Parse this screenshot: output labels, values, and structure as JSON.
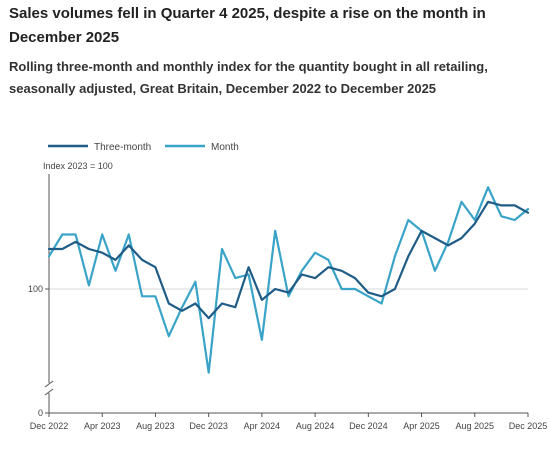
{
  "header": {
    "title": "Sales volumes fell in Quarter 4 2025, despite a rise on the month in December 2025",
    "subtitle": "Rolling three-month and monthly index for the quantity bought in all retailing, seasonally adjusted, Great Britain, December 2022 to December 2025"
  },
  "colors": {
    "three_month": "#1f5c86",
    "month": "#3aa3c8",
    "gridline": "#d9d9d9",
    "axis": "#555555"
  },
  "chart_data": {
    "type": "line",
    "title": "Sales volumes fell in Quarter 4 2025, despite a rise on the month in December 2025",
    "subtitle": "Rolling three-month and monthly index for the quantity bought in all retailing, seasonally adjusted, Great Britain, December 2022 to December 2025",
    "unit_note": "Index 2023 = 100",
    "x": [
      "Dec 2022",
      "Jan 2023",
      "Feb 2023",
      "Mar 2023",
      "Apr 2023",
      "May 2023",
      "Jun 2023",
      "Jul 2023",
      "Aug 2023",
      "Sep 2023",
      "Oct 2023",
      "Nov 2023",
      "Dec 2023",
      "Jan 2024",
      "Feb 2024",
      "Mar 2024",
      "Apr 2024",
      "May 2024",
      "Jun 2024",
      "Jul 2024",
      "Aug 2024",
      "Sep 2024",
      "Oct 2024",
      "Nov 2024",
      "Dec 2024",
      "Jan 2025",
      "Feb 2025",
      "Mar 2025",
      "Apr 2025",
      "May 2025",
      "Jun 2025",
      "Jul 2025",
      "Aug 2025",
      "Sep 2025",
      "Oct 2025",
      "Nov 2025",
      "Dec 2025"
    ],
    "x_tick_labels": [
      "Dec 2022",
      "Apr 2023",
      "Aug 2023",
      "Dec 2023",
      "Apr 2024",
      "Aug 2024",
      "Dec 2024",
      "Apr 2025",
      "Aug 2025",
      "Dec 2025"
    ],
    "x_tick_indices": [
      0,
      4,
      8,
      12,
      16,
      20,
      24,
      28,
      32,
      36
    ],
    "y_tick_labels": [
      "0",
      "100"
    ],
    "y_ticks": [
      0,
      100
    ],
    "y_axis_break": true,
    "ylim": [
      97.0,
      103.0
    ],
    "series": [
      {
        "name": "Three-month",
        "values": [
          101.1,
          101.1,
          101.3,
          101.1,
          101.0,
          100.8,
          101.2,
          100.8,
          100.6,
          99.6,
          99.4,
          99.6,
          99.2,
          99.6,
          99.5,
          100.6,
          99.7,
          100.0,
          99.9,
          100.4,
          100.3,
          100.6,
          100.5,
          100.3,
          99.9,
          99.8,
          100.0,
          100.9,
          101.6,
          101.4,
          101.2,
          101.4,
          101.8,
          102.4,
          102.3,
          102.3,
          102.1
        ]
      },
      {
        "name": "Month",
        "values": [
          100.9,
          101.5,
          101.5,
          100.1,
          101.5,
          100.5,
          101.5,
          99.8,
          99.8,
          98.7,
          99.5,
          100.2,
          97.7,
          101.1,
          100.3,
          100.4,
          98.6,
          101.6,
          99.8,
          100.5,
          101.0,
          100.8,
          100.0,
          100.0,
          99.8,
          99.6,
          100.9,
          101.9,
          101.6,
          100.5,
          101.3,
          102.4,
          101.9,
          102.8,
          102.0,
          101.9,
          102.2
        ]
      }
    ],
    "legend_position": "top-left",
    "grid": false
  }
}
